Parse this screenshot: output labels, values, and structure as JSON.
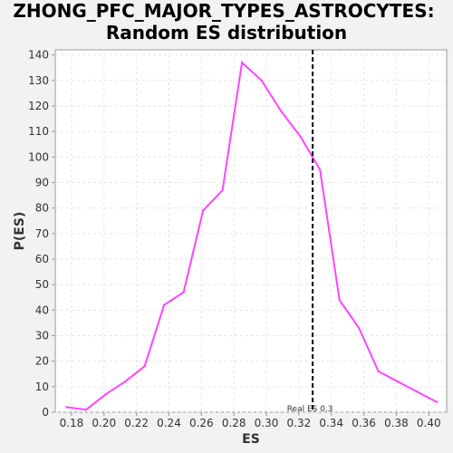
{
  "chart_data": {
    "type": "line",
    "title_line1": "ZHONG_PFC_MAJOR_TYPES_ASTROCYTES:",
    "title_line2": "Random ES distribution",
    "xlabel": "ES",
    "ylabel": "P(ES)",
    "xlim": [
      0.17,
      0.411
    ],
    "ylim": [
      0,
      142
    ],
    "x_ticks": [
      "0.18",
      "0.20",
      "0.22",
      "0.24",
      "0.26",
      "0.28",
      "0.30",
      "0.32",
      "0.34",
      "0.36",
      "0.38",
      "0.40"
    ],
    "y_ticks": [
      "0",
      "10",
      "20",
      "30",
      "40",
      "50",
      "60",
      "70",
      "80",
      "90",
      "100",
      "110",
      "120",
      "130",
      "140"
    ],
    "grid": true,
    "series": [
      {
        "color": "#ff44ff",
        "x": [
          0.177,
          0.189,
          0.201,
          0.213,
          0.225,
          0.237,
          0.249,
          0.261,
          0.273,
          0.285,
          0.297,
          0.309,
          0.321,
          0.333,
          0.345,
          0.357,
          0.369,
          0.381,
          0.393,
          0.405
        ],
        "y": [
          2,
          1,
          7,
          12,
          18,
          42,
          47,
          79,
          87,
          137,
          130,
          118,
          108,
          95,
          44,
          33,
          16,
          12,
          8,
          4
        ]
      }
    ],
    "marker": {
      "x": 0.3285,
      "label": "Real ES 0.3",
      "style": "dashed",
      "color": "#000000"
    },
    "colors": {
      "background": "#f2f2f2",
      "plot_background": "#ffffff",
      "grid": "#e6e6e6",
      "axis": "#999999"
    }
  }
}
